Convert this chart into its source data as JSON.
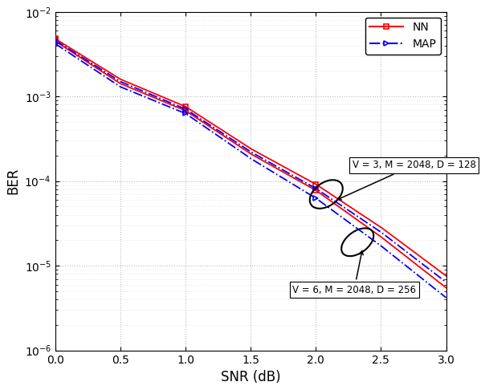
{
  "snr": [
    0,
    0.5,
    1.0,
    1.5,
    2.0,
    2.5,
    3.0
  ],
  "ber_v3_nn": [
    0.0045,
    0.00142,
    0.00068,
    0.00021,
    7.8e-05,
    2.2e-05,
    5.5e-06
  ],
  "ber_v3_map": [
    0.0042,
    0.0013,
    0.00063,
    0.000185,
    6.3e-05,
    1.72e-05,
    4.2e-06
  ],
  "ber_v6_nn": [
    0.0048,
    0.0016,
    0.00076,
    0.000242,
    9.2e-05,
    2.85e-05,
    7.6e-06
  ],
  "ber_v6_map": [
    0.0046,
    0.0015,
    0.00071,
    0.000222,
    8.2e-05,
    2.5e-05,
    6.4e-06
  ],
  "marker_indices": [
    0,
    2,
    4
  ],
  "nn_color": "#FF0000",
  "map_color": "#0000FF",
  "xlabel": "SNR (dB)",
  "ylabel": "BER",
  "ylim_low": 1e-06,
  "ylim_high": 0.01,
  "xlim_low": 0,
  "xlim_high": 3,
  "xticks": [
    0,
    0.5,
    1.0,
    1.5,
    2.0,
    2.5,
    3.0
  ],
  "label_nn": "NN",
  "label_map": "MAP",
  "ann1_text": "V = 3, M = 2048, D = 128",
  "ann2_text": "V = 6, M = 2048, D = 256",
  "background_color": "#FFFFFF",
  "grid_color": "#AAAAAA"
}
